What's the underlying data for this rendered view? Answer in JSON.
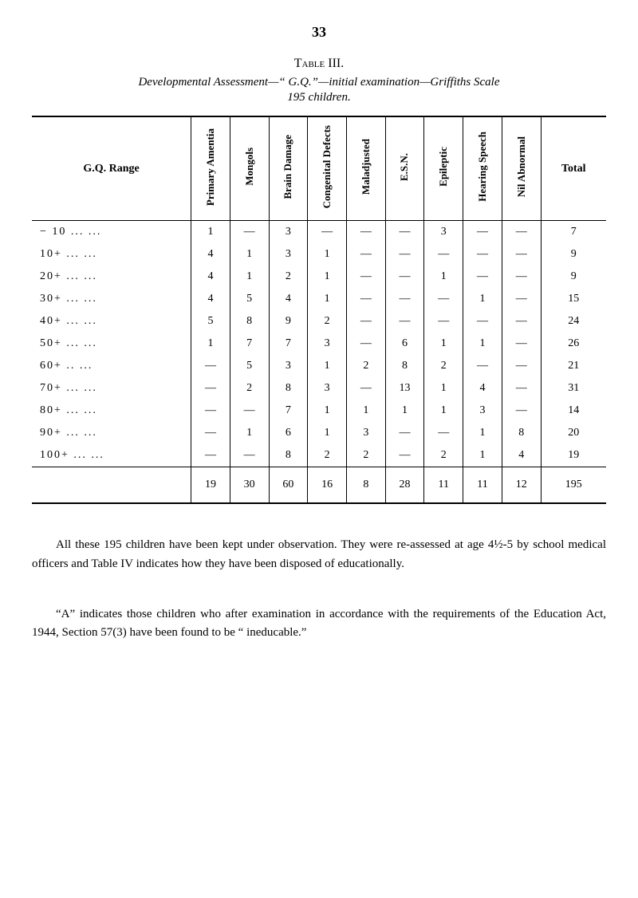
{
  "page_number": "33",
  "table_label": "Table III.",
  "caption_line1": "Developmental Assessment—“ G.Q.”—initial examination—Griffiths Scale",
  "caption_line2": "195 children.",
  "columns": {
    "range": "G.Q.  Range",
    "c1": "Primary Amentia",
    "c2": "Mongols",
    "c3": "Brain Damage",
    "c4": "Congenital Defects",
    "c5": "Maladjusted",
    "c6": "E.S.N.",
    "c7": "Epileptic",
    "c8": "Hearing Speech",
    "c9": "Nil Abnormal",
    "total": "Total"
  },
  "rows": [
    {
      "range": "− 10   ...   ...",
      "c1": "1",
      "c2": "—",
      "c3": "3",
      "c4": "—",
      "c5": "—",
      "c6": "—",
      "c7": "3",
      "c8": "—",
      "c9": "—",
      "total": "7"
    },
    {
      "range": "10+  ...   ...",
      "c1": "4",
      "c2": "1",
      "c3": "3",
      "c4": "1",
      "c5": "—",
      "c6": "—",
      "c7": "—",
      "c8": "—",
      "c9": "—",
      "total": "9"
    },
    {
      "range": "20+  ...   ...",
      "c1": "4",
      "c2": "1",
      "c3": "2",
      "c4": "1",
      "c5": "—",
      "c6": "—",
      "c7": "1",
      "c8": "—",
      "c9": "—",
      "total": "9"
    },
    {
      "range": "30+  ...   ...",
      "c1": "4",
      "c2": "5",
      "c3": "4",
      "c4": "1",
      "c5": "—",
      "c6": "—",
      "c7": "—",
      "c8": "1",
      "c9": "—",
      "total": "15"
    },
    {
      "range": "40+  ...   ...",
      "c1": "5",
      "c2": "8",
      "c3": "9",
      "c4": "2",
      "c5": "—",
      "c6": "—",
      "c7": "—",
      "c8": "—",
      "c9": "—",
      "total": "24"
    },
    {
      "range": "50+  ...   ...",
      "c1": "1",
      "c2": "7",
      "c3": "7",
      "c4": "3",
      "c5": "—",
      "c6": "6",
      "c7": "1",
      "c8": "1",
      "c9": "—",
      "total": "26"
    },
    {
      "range": "60+  ..    ...",
      "c1": "—",
      "c2": "5",
      "c3": "3",
      "c4": "1",
      "c5": "2",
      "c6": "8",
      "c7": "2",
      "c8": "—",
      "c9": "—",
      "total": "21"
    },
    {
      "range": "70+  ...   ...",
      "c1": "—",
      "c2": "2",
      "c3": "8",
      "c4": "3",
      "c5": "—",
      "c6": "13",
      "c7": "1",
      "c8": "4",
      "c9": "—",
      "total": "31"
    },
    {
      "range": "80+  ...   ...",
      "c1": "—",
      "c2": "—",
      "c3": "7",
      "c4": "1",
      "c5": "1",
      "c6": "1",
      "c7": "1",
      "c8": "3",
      "c9": "—",
      "total": "14"
    },
    {
      "range": "90+  ...   ...",
      "c1": "—",
      "c2": "1",
      "c3": "6",
      "c4": "1",
      "c5": "3",
      "c6": "—",
      "c7": "—",
      "c8": "1",
      "c9": "8",
      "total": "20"
    },
    {
      "range": "100+ ...   ...",
      "c1": "—",
      "c2": "—",
      "c3": "8",
      "c4": "2",
      "c5": "2",
      "c6": "—",
      "c7": "2",
      "c8": "1",
      "c9": "4",
      "total": "19"
    }
  ],
  "totals": {
    "range": "",
    "c1": "19",
    "c2": "30",
    "c3": "60",
    "c4": "16",
    "c5": "8",
    "c6": "28",
    "c7": "11",
    "c8": "11",
    "c9": "12",
    "total": "195"
  },
  "para1": "All these 195 children have been kept under observation. They were re-assessed at age 4½-5 by school medical officers and Table IV indicates how they have been disposed of educationally.",
  "para2": "“A” indicates those children who after examination in accordance with the requirements of the Education Act, 1944, Section 57(3) have been found to be “ ineducable.”"
}
